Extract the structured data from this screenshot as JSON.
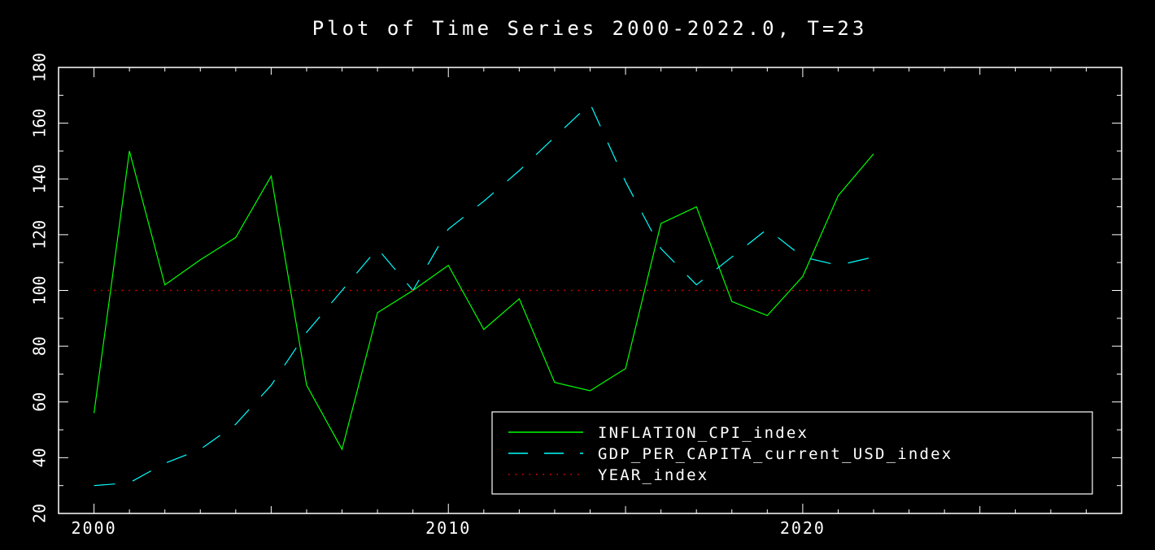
{
  "chart_data": {
    "type": "line",
    "title": "Plot of Time Series 2000-2022.0, T=23",
    "xlabel": "",
    "ylabel": "",
    "xlim": [
      1999,
      2029
    ],
    "ylim": [
      20,
      180
    ],
    "xticks": [
      2000,
      2010,
      2020
    ],
    "yticks": [
      20,
      40,
      60,
      80,
      100,
      120,
      140,
      160,
      180
    ],
    "grid": false,
    "legend_position": "bottom-right",
    "x": [
      2000,
      2001,
      2002,
      2003,
      2004,
      2005,
      2006,
      2007,
      2008,
      2009,
      2010,
      2011,
      2012,
      2013,
      2014,
      2015,
      2016,
      2017,
      2018,
      2019,
      2020,
      2021,
      2022
    ],
    "series": [
      {
        "name": "INFLATION_CPI_index",
        "color": "#00ff00",
        "style": "solid",
        "values": [
          56,
          150,
          102,
          111,
          119,
          141,
          66,
          43,
          92,
          100,
          109,
          86,
          97,
          67,
          64,
          72,
          124,
          130,
          96,
          91,
          105,
          134,
          149
        ]
      },
      {
        "name": "GDP_PER_CAPITA_current_USD_index",
        "color": "#00ffff",
        "style": "dashed",
        "values": [
          30,
          31,
          38,
          43,
          52,
          66,
          85,
          100,
          115,
          100,
          122,
          132,
          143,
          155,
          167,
          139,
          115,
          102,
          112,
          122,
          112,
          109,
          112
        ]
      },
      {
        "name": "YEAR_index",
        "color": "#ff0000",
        "style": "dotted",
        "values": [
          100,
          100,
          100,
          100,
          100,
          100,
          100,
          100,
          100,
          100,
          100,
          100,
          100,
          100,
          100,
          100,
          100,
          100,
          100,
          100,
          100,
          100,
          100
        ]
      }
    ]
  }
}
